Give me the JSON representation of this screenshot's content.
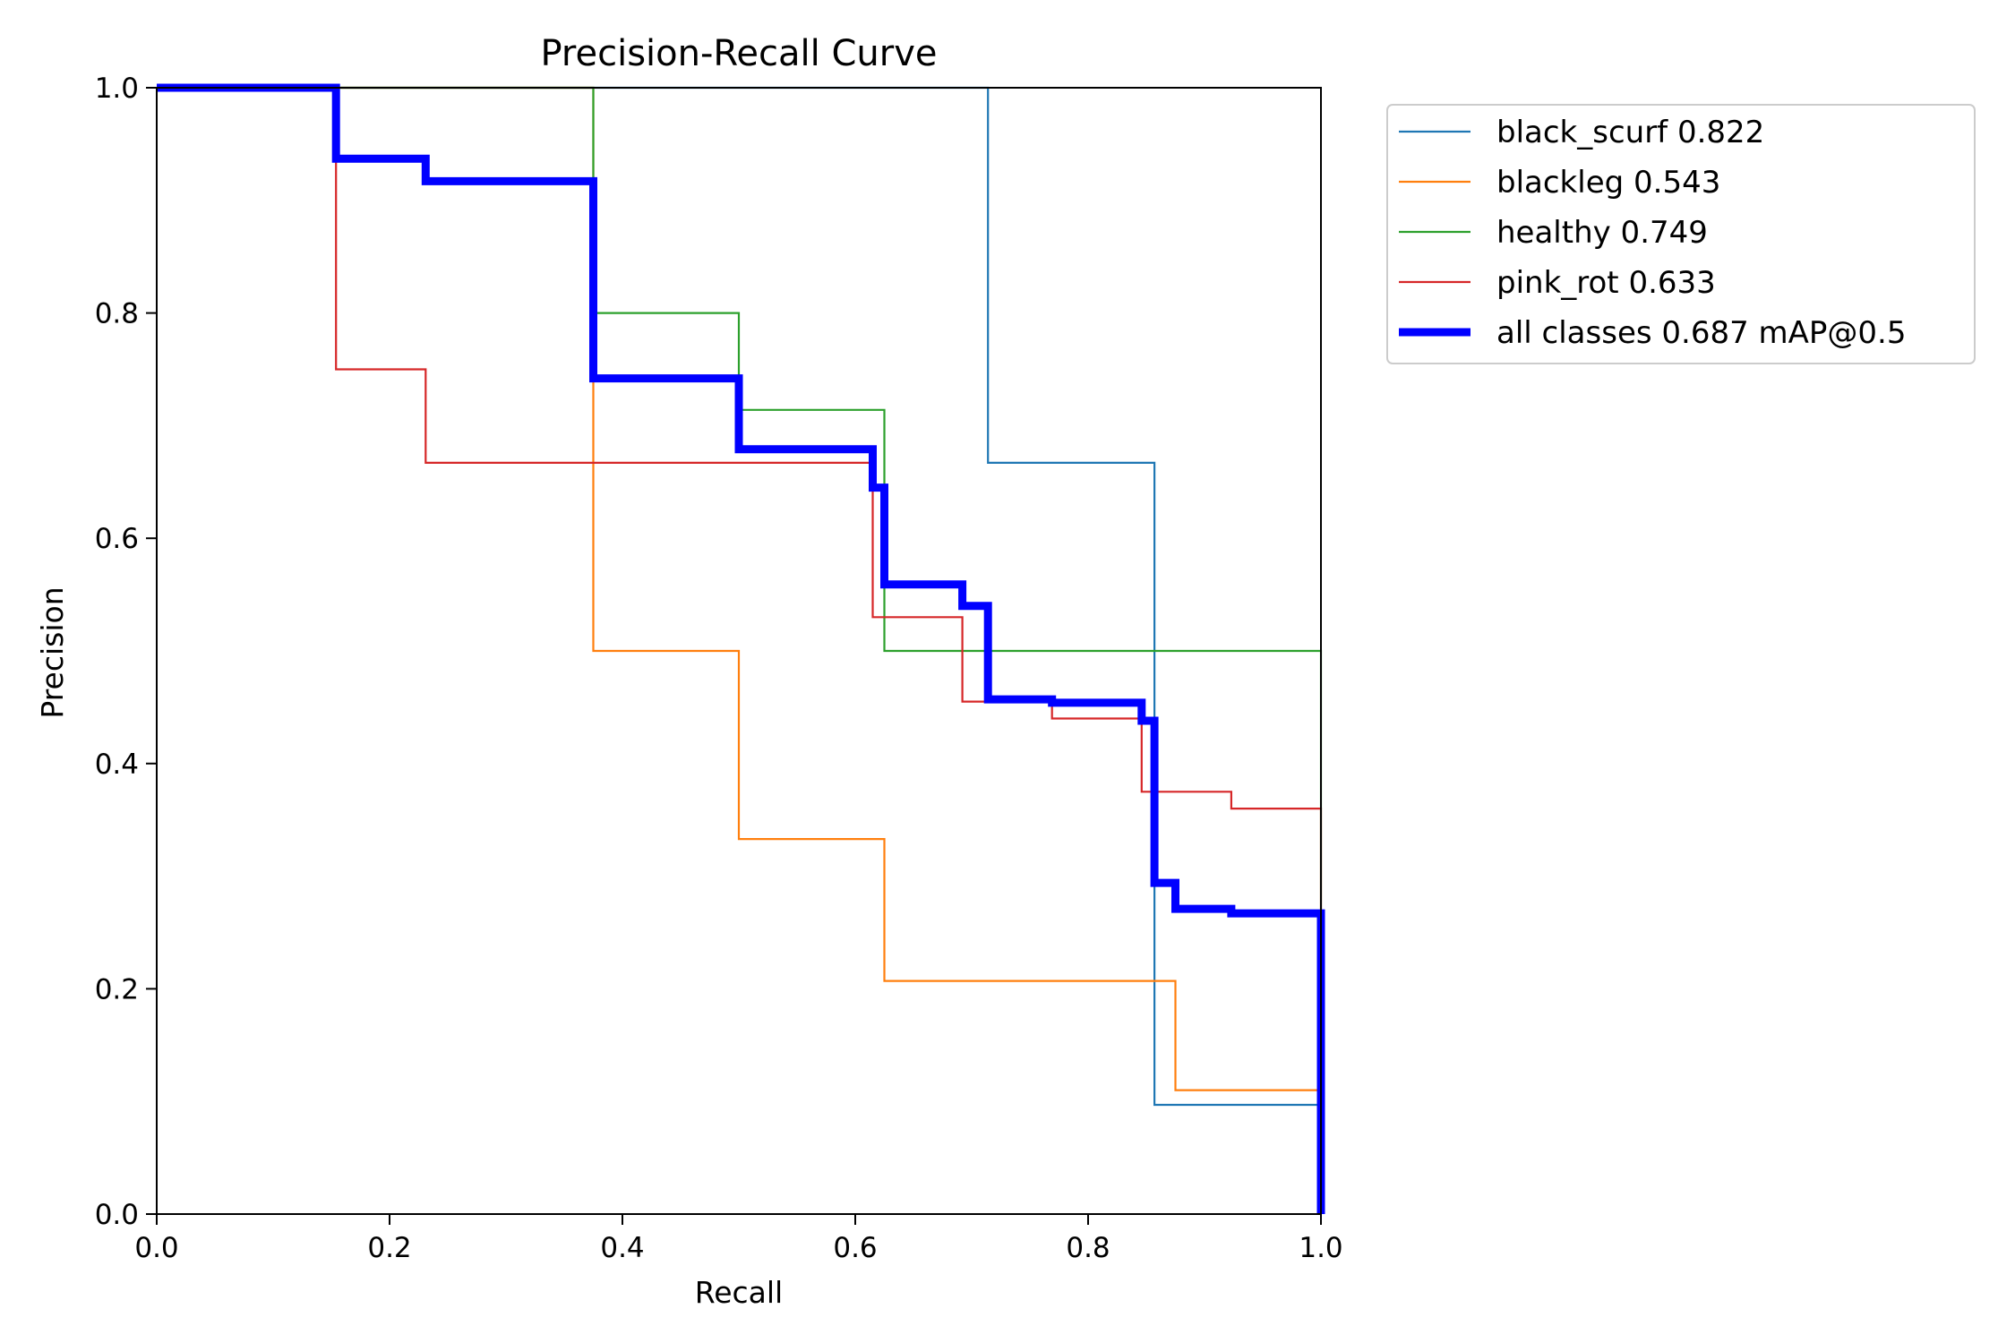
{
  "chart_data": {
    "type": "line",
    "title": "Precision-Recall Curve",
    "xlabel": "Recall",
    "ylabel": "Precision",
    "xlim": [
      0,
      1
    ],
    "ylim": [
      0,
      1
    ],
    "xticks": [
      "0.0",
      "0.2",
      "0.4",
      "0.6",
      "0.8",
      "1.0"
    ],
    "yticks": [
      "0.0",
      "0.2",
      "0.4",
      "0.6",
      "0.8",
      "1.0"
    ],
    "grid": false,
    "legend_position": "outside-right-top",
    "series": [
      {
        "name": "black_scurf 0.822",
        "color": "#1f77b4",
        "emphasis": false,
        "points": [
          [
            0.0,
            1.0
          ],
          [
            0.714,
            1.0
          ],
          [
            0.714,
            0.667
          ],
          [
            0.857,
            0.667
          ],
          [
            0.857,
            0.097
          ],
          [
            1.0,
            0.097
          ],
          [
            1.0,
            0.0
          ]
        ]
      },
      {
        "name": "blackleg 0.543",
        "color": "#ff7f0e",
        "emphasis": false,
        "points": [
          [
            0.0,
            1.0
          ],
          [
            0.375,
            1.0
          ],
          [
            0.375,
            0.5
          ],
          [
            0.5,
            0.5
          ],
          [
            0.5,
            0.333
          ],
          [
            0.625,
            0.333
          ],
          [
            0.625,
            0.207
          ],
          [
            0.875,
            0.207
          ],
          [
            0.875,
            0.11
          ],
          [
            1.0,
            0.11
          ],
          [
            1.0,
            0.0
          ]
        ]
      },
      {
        "name": "healthy 0.749",
        "color": "#2ca02c",
        "emphasis": false,
        "points": [
          [
            0.0,
            1.0
          ],
          [
            0.375,
            1.0
          ],
          [
            0.375,
            0.8
          ],
          [
            0.5,
            0.8
          ],
          [
            0.5,
            0.714
          ],
          [
            0.625,
            0.714
          ],
          [
            0.625,
            0.5
          ],
          [
            1.0,
            0.5
          ],
          [
            1.0,
            0.0
          ]
        ]
      },
      {
        "name": "pink_rot 0.633",
        "color": "#d62728",
        "emphasis": false,
        "points": [
          [
            0.0,
            1.0
          ],
          [
            0.154,
            1.0
          ],
          [
            0.154,
            0.75
          ],
          [
            0.231,
            0.75
          ],
          [
            0.231,
            0.667
          ],
          [
            0.615,
            0.667
          ],
          [
            0.615,
            0.53
          ],
          [
            0.692,
            0.53
          ],
          [
            0.692,
            0.455
          ],
          [
            0.769,
            0.455
          ],
          [
            0.769,
            0.44
          ],
          [
            0.846,
            0.44
          ],
          [
            0.846,
            0.375
          ],
          [
            0.923,
            0.375
          ],
          [
            0.923,
            0.36
          ],
          [
            1.0,
            0.36
          ],
          [
            1.0,
            0.0
          ]
        ]
      },
      {
        "name": "all classes 0.687 mAP@0.5",
        "color": "#0000ff",
        "emphasis": true,
        "points": [
          [
            0.0,
            1.0
          ],
          [
            0.154,
            1.0
          ],
          [
            0.154,
            0.937
          ],
          [
            0.231,
            0.937
          ],
          [
            0.231,
            0.917
          ],
          [
            0.375,
            0.917
          ],
          [
            0.375,
            0.742
          ],
          [
            0.5,
            0.742
          ],
          [
            0.5,
            0.679
          ],
          [
            0.615,
            0.679
          ],
          [
            0.615,
            0.645
          ],
          [
            0.625,
            0.645
          ],
          [
            0.625,
            0.559
          ],
          [
            0.692,
            0.559
          ],
          [
            0.692,
            0.54
          ],
          [
            0.714,
            0.54
          ],
          [
            0.714,
            0.457
          ],
          [
            0.769,
            0.457
          ],
          [
            0.769,
            0.454
          ],
          [
            0.846,
            0.454
          ],
          [
            0.846,
            0.438
          ],
          [
            0.857,
            0.438
          ],
          [
            0.857,
            0.294
          ],
          [
            0.875,
            0.294
          ],
          [
            0.875,
            0.271
          ],
          [
            0.923,
            0.271
          ],
          [
            0.923,
            0.267
          ],
          [
            1.0,
            0.267
          ],
          [
            1.0,
            0.0
          ]
        ]
      }
    ]
  }
}
